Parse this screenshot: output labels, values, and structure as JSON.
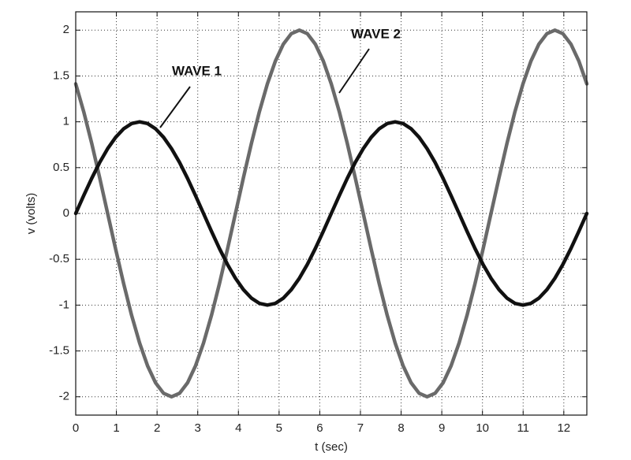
{
  "chart_data": {
    "type": "line",
    "xlabel": "t (sec)",
    "ylabel": "v (volts)",
    "annotations": [
      "WAVE 1",
      "WAVE 2"
    ],
    "x": [
      0,
      0.196,
      0.393,
      0.589,
      0.785,
      0.982,
      1.178,
      1.374,
      1.571,
      1.767,
      1.963,
      2.16,
      2.356,
      2.553,
      2.749,
      2.945,
      3.142,
      3.338,
      3.534,
      3.731,
      3.927,
      4.123,
      4.32,
      4.516,
      4.712,
      4.909,
      5.105,
      5.301,
      5.498,
      5.694,
      5.89,
      6.087,
      6.283,
      6.48,
      6.676,
      6.872,
      7.069,
      7.265,
      7.461,
      7.658,
      7.854,
      8.05,
      8.247,
      8.443,
      8.639,
      8.836,
      9.032,
      9.228,
      9.425,
      9.621,
      9.817,
      10.014,
      10.21,
      10.407,
      10.603,
      10.799,
      10.996,
      11.192,
      11.388,
      11.585,
      11.781,
      11.977,
      12.174,
      12.37,
      12.566
    ],
    "series": [
      {
        "name": "WAVE 1",
        "color": "#111111",
        "values": [
          0,
          0.195,
          0.383,
          0.556,
          0.707,
          0.831,
          0.924,
          0.981,
          1,
          0.981,
          0.924,
          0.831,
          0.707,
          0.556,
          0.383,
          0.195,
          0,
          -0.195,
          -0.383,
          -0.556,
          -0.707,
          -0.831,
          -0.924,
          -0.981,
          -1,
          -0.981,
          -0.924,
          -0.831,
          -0.707,
          -0.556,
          -0.383,
          -0.195,
          0,
          0.195,
          0.383,
          0.556,
          0.707,
          0.831,
          0.924,
          0.981,
          1,
          0.981,
          0.924,
          0.831,
          0.707,
          0.556,
          0.383,
          0.195,
          0,
          -0.195,
          -0.383,
          -0.556,
          -0.707,
          -0.831,
          -0.924,
          -0.981,
          -1,
          -0.981,
          -0.924,
          -0.831,
          -0.707,
          -0.556,
          -0.383,
          -0.195,
          0
        ]
      },
      {
        "name": "WAVE 2",
        "color": "#6a6a6a",
        "values": [
          1.414,
          1.111,
          0.765,
          0.39,
          0,
          -0.39,
          -0.765,
          -1.111,
          -1.414,
          -1.663,
          -1.848,
          -1.962,
          -2,
          -1.962,
          -1.848,
          -1.663,
          -1.414,
          -1.111,
          -0.765,
          -0.39,
          0,
          0.39,
          0.765,
          1.111,
          1.414,
          1.663,
          1.848,
          1.962,
          2,
          1.962,
          1.848,
          1.663,
          1.414,
          1.111,
          0.765,
          0.39,
          0,
          -0.39,
          -0.765,
          -1.111,
          -1.414,
          -1.663,
          -1.848,
          -1.962,
          -2,
          -1.962,
          -1.848,
          -1.663,
          -1.414,
          -1.111,
          -0.765,
          -0.39,
          0,
          0.39,
          0.765,
          1.111,
          1.414,
          1.663,
          1.848,
          1.962,
          2,
          1.962,
          1.848,
          1.663,
          1.414
        ]
      }
    ],
    "xlim": [
      0,
      12.566
    ],
    "xticks": [
      0,
      1,
      2,
      3,
      4,
      5,
      6,
      7,
      8,
      9,
      10,
      11,
      12
    ],
    "ylim": [
      -2.2,
      2.2
    ],
    "yticks": [
      -2,
      -1.5,
      -1,
      -0.5,
      0,
      0.5,
      1,
      1.5,
      2
    ],
    "grid": true
  }
}
